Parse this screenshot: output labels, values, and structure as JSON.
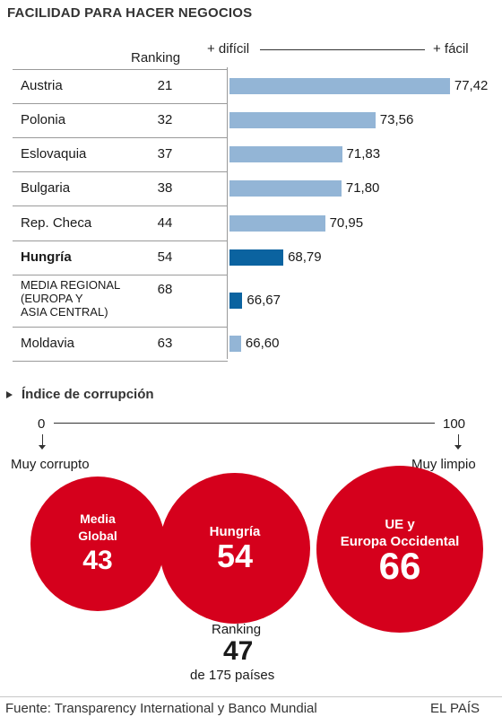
{
  "title": "FACILIDAD PARA HACER NEGOCIOS",
  "ranking_header": "Ranking",
  "axis": {
    "left": "+ difícil",
    "right": "+ fácil"
  },
  "colors": {
    "bar_normal": "#93b5d6",
    "bar_highlight": "#0b63a0",
    "circle": "#d5001c"
  },
  "chart_data": [
    {
      "type": "bar",
      "title": "FACILIDAD PARA HACER NEGOCIOS",
      "categories": [
        "Austria",
        "Polonia",
        "Eslovaquia",
        "Bulgaria",
        "Rep. Checa",
        "Hungría",
        "MEDIA REGIONAL (EUROPA Y ASIA CENTRAL)",
        "Moldavia"
      ],
      "category_labels": [
        [
          "Austria"
        ],
        [
          "Polonia"
        ],
        [
          "Eslovaquia"
        ],
        [
          "Bulgaria"
        ],
        [
          "Rep. Checa"
        ],
        [
          "Hungría"
        ],
        [
          "MEDIA REGIONAL",
          "(EUROPA Y",
          "ASIA CENTRAL)"
        ],
        [
          "Moldavia"
        ]
      ],
      "ranking": [
        "21",
        "32",
        "37",
        "38",
        "44",
        "54",
        "68",
        "63"
      ],
      "values": [
        77.42,
        73.56,
        71.83,
        71.8,
        70.95,
        68.79,
        66.67,
        66.6
      ],
      "value_labels": [
        "77,42",
        "73,56",
        "71,83",
        "71,80",
        "70,95",
        "68,79",
        "66,67",
        "66,60"
      ],
      "highlight": [
        false,
        false,
        false,
        false,
        false,
        true,
        true,
        false
      ],
      "bold_label": [
        false,
        false,
        false,
        false,
        false,
        true,
        false,
        false
      ],
      "orientation": "horizontal",
      "grid": false
    },
    {
      "type": "bubble",
      "title": "Índice de corrupción",
      "scale": {
        "min_label": "0",
        "max_label": "100",
        "min_text": "Muy corrupto",
        "max_text": "Muy limpio"
      },
      "circles": [
        {
          "label": [
            "Media",
            "Global"
          ],
          "value": 43
        },
        {
          "label": [
            "Hungría"
          ],
          "value": 54
        },
        {
          "label": [
            "UE y",
            "Europa Occidental"
          ],
          "value": 66
        }
      ]
    }
  ],
  "ranking_block": {
    "label": "Ranking",
    "value": "47",
    "sub": "de 175 países"
  },
  "footer": {
    "source": "Fuente: Transparency International y Banco Mundial",
    "brand": "EL PAÍS"
  }
}
